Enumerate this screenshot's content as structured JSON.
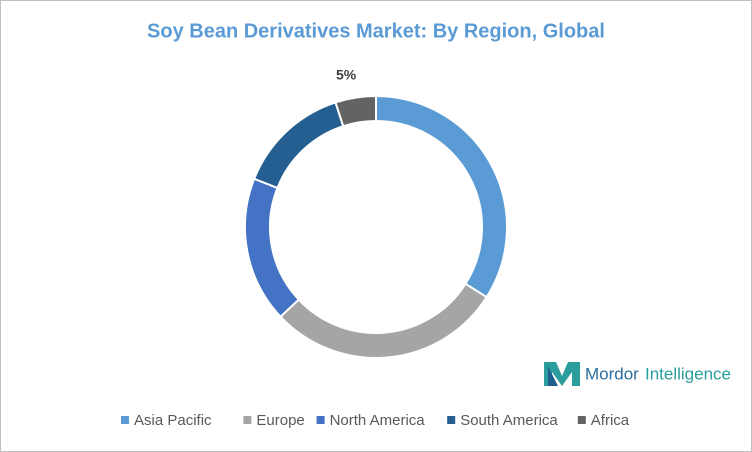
{
  "chart_data": {
    "type": "donut",
    "title": "Soy Bean Derivatives Market: By Region, Global",
    "categories": [
      "Asia Pacific",
      "Europe",
      "North America",
      "South America",
      "Africa"
    ],
    "values": [
      34,
      29,
      18,
      14,
      5
    ],
    "value_labels": [
      null,
      null,
      null,
      null,
      "5%"
    ],
    "colors": [
      "#5b9bd5",
      "#a5a5a5",
      "#4472c4",
      "#255e91",
      "#636363"
    ],
    "legend": "bottom",
    "watermark": [
      "Mordor",
      "Intelligence"
    ]
  }
}
